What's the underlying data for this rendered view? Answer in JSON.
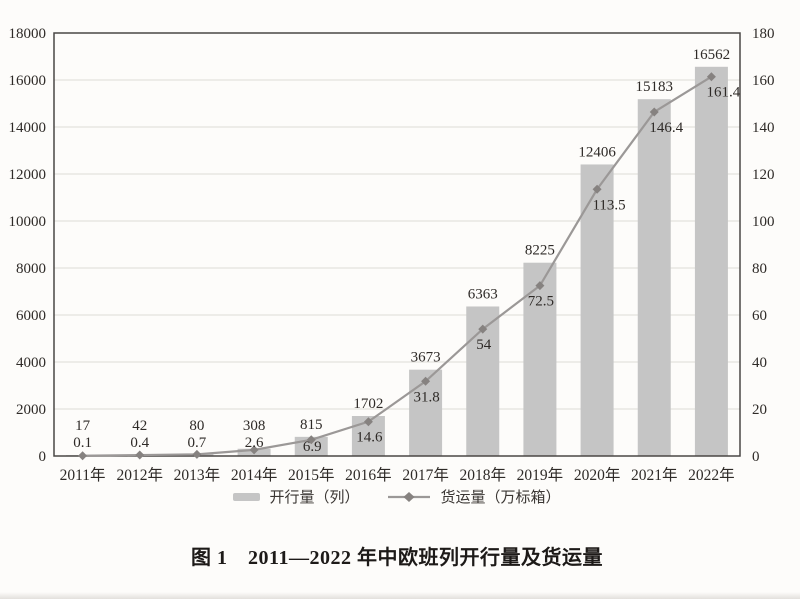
{
  "chart_data": {
    "type": "combo",
    "title": "图 1　2011—2022 年中欧班列开行量及货运量",
    "categories": [
      "2011年",
      "2012年",
      "2013年",
      "2014年",
      "2015年",
      "2016年",
      "2017年",
      "2018年",
      "2019年",
      "2020年",
      "2021年",
      "2022年"
    ],
    "series": [
      {
        "name": "开行量（列）",
        "type": "bar",
        "axis": "left",
        "values": [
          17,
          42,
          80,
          308,
          815,
          1702,
          3673,
          6363,
          8225,
          12406,
          15183,
          16562
        ],
        "labels": [
          "17",
          "42",
          "80",
          "308",
          "815",
          "1702",
          "3673",
          "6363",
          "8225",
          "12406",
          "15183",
          "16562"
        ]
      },
      {
        "name": "货运量（万标箱）",
        "type": "line",
        "axis": "right",
        "values": [
          0.1,
          0.4,
          0.7,
          2.6,
          6.9,
          14.6,
          31.8,
          54,
          72.5,
          113.5,
          146.4,
          161.4
        ],
        "labels": [
          "0.1",
          "0.4",
          "0.7",
          "2.6",
          "6.9",
          "14.6",
          "31.8",
          "54",
          "72.5",
          "113.5",
          "146.4",
          "161.4"
        ]
      }
    ],
    "left_axis": {
      "min": 0,
      "max": 18000,
      "step": 2000,
      "ticks": [
        "0",
        "2000",
        "4000",
        "6000",
        "8000",
        "10000",
        "12000",
        "14000",
        "16000",
        "18000"
      ]
    },
    "right_axis": {
      "min": 0,
      "max": 180,
      "step": 20,
      "ticks": [
        "0",
        "20",
        "40",
        "60",
        "80",
        "100",
        "120",
        "140",
        "160",
        "180"
      ]
    },
    "grid": true,
    "legend_position": "bottom",
    "colors": {
      "bar": "#c5c5c5",
      "line": "#9b9897",
      "marker": "#868280",
      "grid": "#e4e1de",
      "axis": "#4a4644",
      "text": "#2e2a27",
      "background": "#fdfcfa"
    }
  }
}
